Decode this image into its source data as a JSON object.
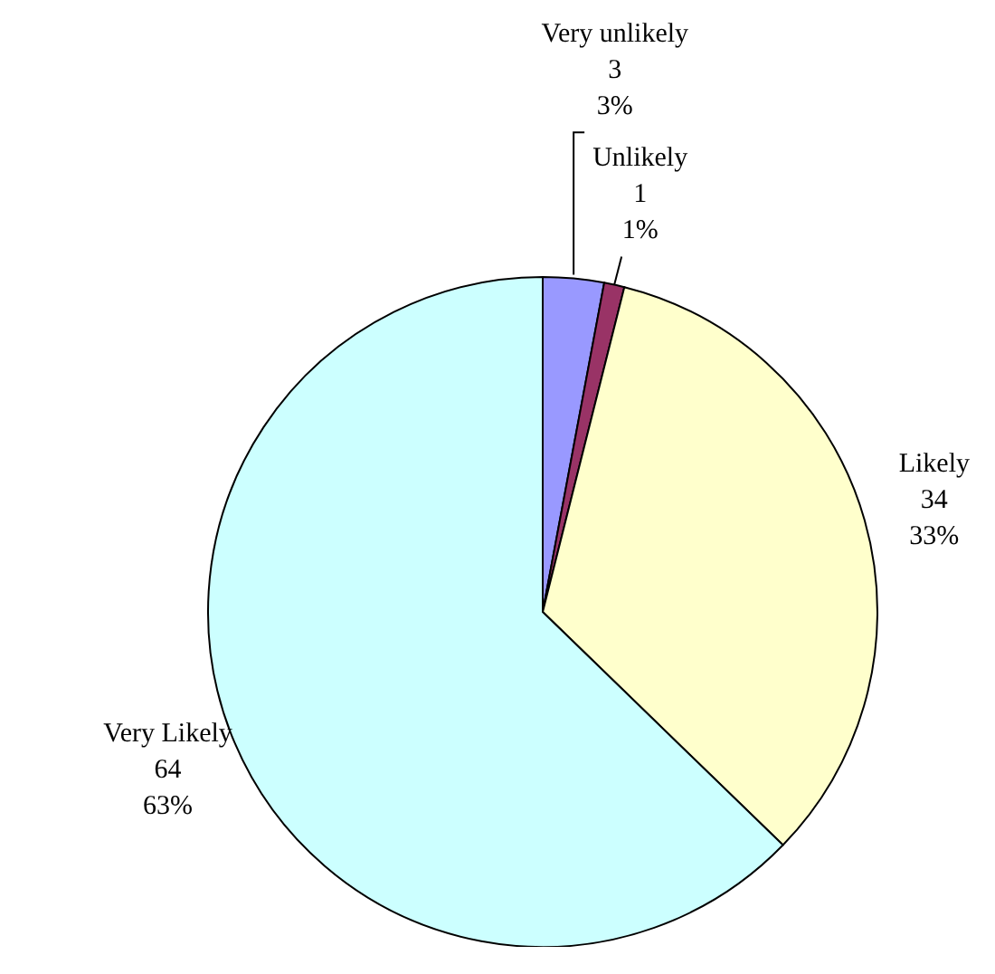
{
  "chart_data": {
    "type": "pie",
    "categories": [
      "Very unlikely",
      "Unlikely",
      "Likely",
      "Very Likely"
    ],
    "values": [
      3,
      1,
      34,
      64
    ],
    "colors": [
      "#9999ff",
      "#993366",
      "#ffffcc",
      "#ccffff"
    ],
    "value_labels": [
      "3\n3%",
      "1\n1%",
      "34\n33%",
      "64\n63%"
    ]
  }
}
